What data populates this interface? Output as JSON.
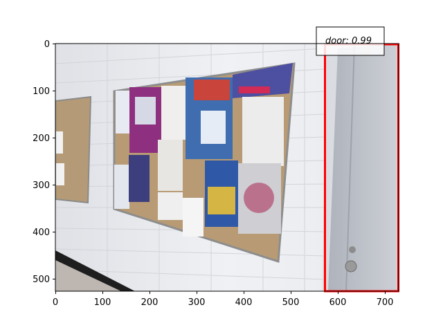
{
  "image_axes": {
    "x_ticks": [
      "0",
      "100",
      "200",
      "300",
      "400",
      "500",
      "600",
      "700"
    ],
    "y_ticks": [
      "0",
      "100",
      "200",
      "300",
      "400",
      "500"
    ]
  },
  "detection": {
    "label": "door: 0.99",
    "box_color": "#ff0000"
  },
  "scene": {
    "wall_color": "#e9ebee",
    "board_color": "#b89b74",
    "door_color": "#c2c6cd",
    "floor_color": "#bdb6b1"
  }
}
